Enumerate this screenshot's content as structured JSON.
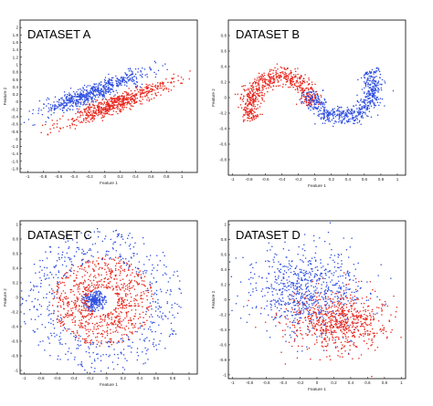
{
  "colors": {
    "class_1": "#e8261c",
    "class_2": "#2f4fe0",
    "axes": "#000000",
    "background": "#ffffff"
  },
  "chart_data": [
    {
      "type": "scatter",
      "title": "DATASET A",
      "xlabel": "Feature 1",
      "ylabel": "Feature 2",
      "xlim": [
        -1.1,
        1.2
      ],
      "ylim": [
        -1.9,
        2.2
      ],
      "xticks": [
        -1,
        -0.8,
        -0.6,
        -0.4,
        -0.2,
        0,
        0.2,
        0.4,
        0.6,
        0.8,
        1
      ],
      "xtick_labels": [
        "-1",
        "-0.8",
        "-0.6",
        "-0.4",
        "-0.2",
        "0",
        "0.2",
        "0.4",
        "0.6",
        "0.8",
        "1"
      ],
      "yticks": [
        -1.8,
        -1.6,
        -1.4,
        -1.2,
        -1,
        -0.8,
        -0.6,
        -0.4,
        -0.2,
        0,
        0.2,
        0.4,
        0.6,
        0.8,
        1,
        1.2,
        1.4,
        1.6,
        1.8,
        2
      ],
      "ytick_labels": [
        "-1.8",
        "-1.6",
        "-1.4",
        "-1.2",
        "-1",
        "-0.8",
        "-0.6",
        "-0.4",
        "-0.2",
        "0",
        "0.2",
        "0.4",
        "0.6",
        "0.8",
        "1",
        "1.2",
        "1.4",
        "1.6",
        "1.8",
        "2"
      ],
      "series": [
        {
          "color": "#e8261c",
          "shape": "gaussian",
          "center": [
            0.15,
            -0.05
          ],
          "spread_along": 0.45,
          "spread_across": 0.1,
          "angle_deg": 40,
          "count": 650
        },
        {
          "color": "#2f4fe0",
          "shape": "gaussian",
          "center": [
            -0.15,
            0.25
          ],
          "spread_along": 0.45,
          "spread_across": 0.1,
          "angle_deg": 40,
          "count": 650
        }
      ]
    },
    {
      "type": "scatter",
      "title": "DATASET B",
      "xlabel": "Feature 1",
      "ylabel": "Feature 2",
      "xlim": [
        -1.05,
        1.1
      ],
      "ylim": [
        -1.0,
        1.0
      ],
      "xticks": [
        -1,
        -0.8,
        -0.6,
        -0.4,
        -0.2,
        0,
        0.2,
        0.4,
        0.6,
        0.8,
        1
      ],
      "xtick_labels": [
        "-1",
        "-0.8",
        "-0.6",
        "-0.4",
        "-0.2",
        "0",
        "0.2",
        "0.4",
        "0.6",
        "0.8",
        "1"
      ],
      "yticks": [
        -0.8,
        -0.6,
        -0.4,
        -0.2,
        0,
        0.2,
        0.4,
        0.6,
        0.8
      ],
      "ytick_labels": [
        "-0.8",
        "-0.6",
        "-0.4",
        "-0.2",
        "0",
        "0.2",
        "0.4",
        "0.6",
        "0.8"
      ],
      "series": [
        {
          "color": "#e8261c",
          "shape": "arc",
          "center": [
            -0.42,
            -0.1
          ],
          "radius": 0.38,
          "thickness": 0.12,
          "start_deg": 0,
          "end_deg": 210,
          "count": 650
        },
        {
          "color": "#2f4fe0",
          "shape": "arc",
          "center": [
            0.32,
            0.15
          ],
          "radius": 0.4,
          "thickness": 0.12,
          "start_deg": 190,
          "end_deg": 390,
          "count": 650
        }
      ]
    },
    {
      "type": "scatter",
      "title": "DATASET C",
      "xlabel": "Feature 1",
      "ylabel": "Feature 2",
      "xlim": [
        -1.05,
        1.1
      ],
      "ylim": [
        -1.05,
        1.05
      ],
      "xticks": [
        -1,
        -0.8,
        -0.6,
        -0.4,
        -0.2,
        0,
        0.2,
        0.4,
        0.6,
        0.8,
        1
      ],
      "xtick_labels": [
        "-1",
        "-0.8",
        "-0.6",
        "-0.4",
        "-0.2",
        "0",
        "0.2",
        "0.4",
        "0.6",
        "0.8",
        "1"
      ],
      "yticks": [
        -1,
        -0.8,
        -0.6,
        -0.4,
        -0.2,
        0,
        0.2,
        0.4,
        0.6,
        0.8,
        1
      ],
      "ytick_labels": [
        "-1",
        "-0.8",
        "-0.6",
        "-0.4",
        "-0.2",
        "0",
        "0.2",
        "0.4",
        "0.6",
        "0.8",
        "1"
      ],
      "series": [
        {
          "color": "#2f4fe0",
          "shape": "ring",
          "center": [
            -0.15,
            -0.05
          ],
          "r_min": 0.0,
          "r_max": 0.15,
          "count": 260
        },
        {
          "color": "#e8261c",
          "shape": "ring",
          "center": [
            -0.05,
            -0.05
          ],
          "r_min": 0.18,
          "r_max": 0.62,
          "count": 820
        },
        {
          "color": "#2f4fe0",
          "shape": "ring",
          "center": [
            -0.05,
            -0.05
          ],
          "r_min": 0.55,
          "r_max": 1.0,
          "count": 520
        }
      ]
    },
    {
      "type": "scatter",
      "title": "DATASET D",
      "xlabel": "Feature 1",
      "ylabel": "Feature 2",
      "xlim": [
        -1.05,
        1.05
      ],
      "ylim": [
        -1.05,
        1.05
      ],
      "xticks": [
        -1,
        -0.8,
        -0.6,
        -0.4,
        -0.2,
        0,
        0.2,
        0.4,
        0.6,
        0.8,
        1
      ],
      "xtick_labels": [
        "-1",
        "-0.8",
        "-0.6",
        "-0.4",
        "-0.2",
        "0",
        "0.2",
        "0.4",
        "0.6",
        "0.8",
        "1"
      ],
      "yticks": [
        -1,
        -0.8,
        -0.6,
        -0.4,
        -0.2,
        0,
        0.2,
        0.4,
        0.6,
        0.8,
        1
      ],
      "ytick_labels": [
        "-1",
        "-0.8",
        "-0.6",
        "-0.4",
        "-0.2",
        "0",
        "0.2",
        "0.4",
        "0.6",
        "0.8",
        "1"
      ],
      "series": [
        {
          "color": "#2f4fe0",
          "shape": "gaussian",
          "center": [
            -0.1,
            0.1
          ],
          "spread_along": 0.35,
          "spread_across": 0.3,
          "angle_deg": 0,
          "count": 750
        },
        {
          "color": "#e8261c",
          "shape": "gaussian",
          "center": [
            0.25,
            -0.3
          ],
          "spread_along": 0.3,
          "spread_across": 0.2,
          "angle_deg": 0,
          "count": 700
        }
      ]
    }
  ]
}
